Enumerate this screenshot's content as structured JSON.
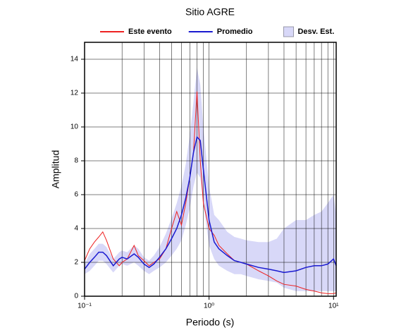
{
  "chart_data": {
    "type": "line",
    "title": "Sitio AGRE",
    "xlabel": "Periodo (s)",
    "ylabel": "Amplitud",
    "xscale": "log",
    "grid": true,
    "legend": "top",
    "xlim": [
      0.1,
      10.5
    ],
    "ylim": [
      0,
      15
    ],
    "xticks": [
      {
        "value": 0.1,
        "label": "10⁻¹"
      },
      {
        "value": 1,
        "label": "10⁰"
      },
      {
        "value": 10,
        "label": "10¹"
      }
    ],
    "xgrid": [
      0.2,
      0.3,
      0.4,
      0.5,
      0.6,
      0.7,
      0.8,
      0.9,
      2,
      3,
      4,
      5,
      6,
      7,
      8,
      9
    ],
    "yticks": [
      0,
      2,
      4,
      6,
      8,
      10,
      12,
      14
    ],
    "x": [
      0.1,
      0.11,
      0.12,
      0.13,
      0.14,
      0.15,
      0.17,
      0.19,
      0.2,
      0.22,
      0.25,
      0.27,
      0.3,
      0.33,
      0.36,
      0.4,
      0.45,
      0.5,
      0.55,
      0.6,
      0.65,
      0.7,
      0.75,
      0.8,
      0.85,
      0.9,
      1.0,
      1.1,
      1.2,
      1.4,
      1.6,
      1.8,
      2,
      2.5,
      3,
      3.5,
      4,
      5,
      6,
      7,
      8,
      9,
      10,
      10.5
    ],
    "series": [
      {
        "name": "Este evento",
        "color": "#ee2222",
        "values": [
          2.1,
          2.8,
          3.2,
          3.5,
          3.8,
          3.3,
          2.2,
          1.8,
          2.0,
          2.2,
          3.0,
          2.4,
          2.1,
          1.8,
          2.0,
          2.2,
          2.8,
          4.0,
          5.0,
          4.2,
          5.5,
          7.0,
          8.5,
          12.1,
          8.0,
          5.5,
          4.0,
          3.6,
          3.0,
          2.5,
          2.1,
          2.0,
          1.9,
          1.5,
          1.2,
          0.9,
          0.7,
          0.6,
          0.4,
          0.3,
          0.2,
          0.15,
          0.15,
          0.2
        ]
      },
      {
        "name": "Promedio",
        "color": "#1a1ad0",
        "values": [
          1.6,
          2.0,
          2.3,
          2.6,
          2.6,
          2.4,
          1.8,
          2.2,
          2.3,
          2.2,
          2.5,
          2.3,
          1.9,
          1.7,
          1.9,
          2.3,
          2.8,
          3.4,
          4.0,
          4.8,
          5.8,
          7.0,
          8.5,
          9.4,
          9.2,
          7.5,
          4.5,
          3.2,
          2.8,
          2.4,
          2.1,
          2.0,
          1.9,
          1.7,
          1.6,
          1.5,
          1.4,
          1.5,
          1.7,
          1.8,
          1.8,
          1.9,
          2.2,
          1.8
        ]
      },
      {
        "name": "Desv. Est.",
        "color": "#d8d8f8",
        "upper": [
          1.9,
          2.5,
          2.8,
          3.1,
          3.1,
          2.9,
          2.2,
          2.6,
          2.7,
          2.6,
          3.0,
          2.8,
          2.3,
          2.1,
          2.4,
          2.9,
          3.7,
          4.6,
          5.5,
          6.5,
          7.8,
          9.5,
          11.5,
          13.5,
          12.5,
          10.0,
          6.5,
          4.8,
          4.5,
          3.8,
          3.5,
          3.4,
          3.3,
          3.2,
          3.2,
          3.4,
          4.0,
          4.5,
          4.5,
          4.8,
          5.0,
          5.5,
          6.0,
          4.8
        ],
        "lower": [
          1.3,
          1.5,
          1.8,
          2.1,
          2.1,
          1.9,
          1.4,
          1.8,
          1.9,
          1.8,
          2.0,
          1.8,
          1.5,
          1.3,
          1.5,
          1.7,
          2.0,
          2.4,
          2.8,
          3.3,
          4.2,
          5.2,
          6.5,
          7.3,
          7.0,
          5.5,
          3.0,
          2.2,
          1.8,
          1.5,
          1.3,
          1.3,
          1.2,
          1.0,
          0.9,
          0.8,
          0.5,
          0.3,
          0.3,
          0.3,
          0.3,
          0.3,
          0.3,
          0.3
        ]
      }
    ]
  }
}
